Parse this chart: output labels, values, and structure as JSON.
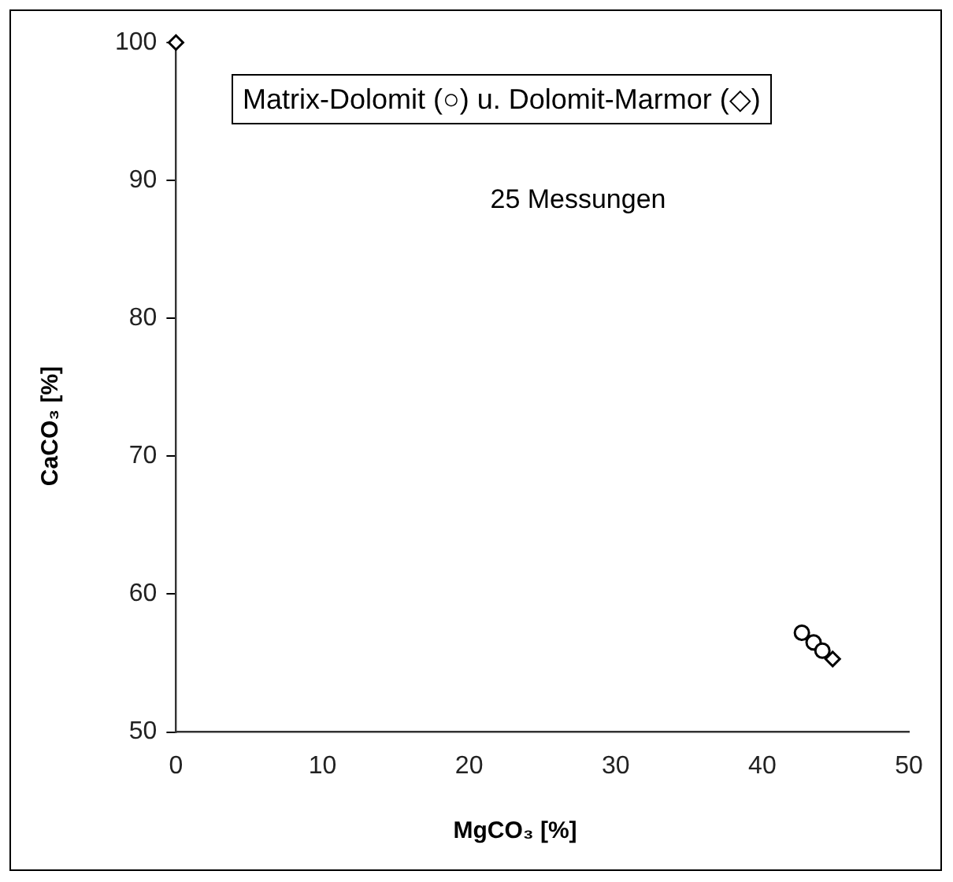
{
  "chart_data": {
    "type": "scatter",
    "xlabel": "MgCO₃ [%]",
    "ylabel": "CaCO₃ [%]",
    "xlim": [
      0,
      50
    ],
    "xticks": [
      0,
      10,
      20,
      30,
      40,
      50
    ],
    "ylim": [
      50,
      100
    ],
    "yticks": [
      50,
      60,
      70,
      80,
      90,
      100
    ],
    "grid": false,
    "legend": false,
    "annotations": [
      "Matrix-Dolomit (○) u. Dolomit-Marmor (◇)",
      "25 Messungen"
    ],
    "series": [
      {
        "marker": "circle",
        "color": "#000000",
        "x": [
          42.7,
          43.5,
          44.1
        ],
        "values": [
          57.2,
          56.5,
          55.9
        ]
      },
      {
        "marker": "diamond",
        "color": "#000000",
        "x": [
          0,
          44.8
        ],
        "values": [
          100,
          55.3
        ]
      }
    ]
  }
}
